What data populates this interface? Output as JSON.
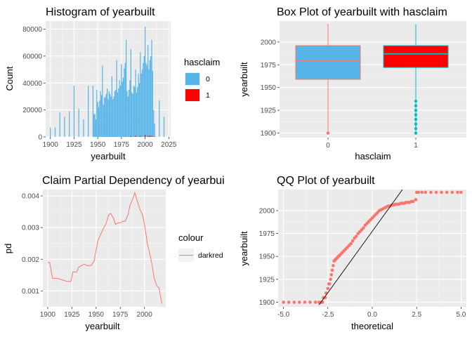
{
  "chart_data": [
    {
      "id": "hist",
      "type": "bar",
      "title": "Histogram of yearbuilt",
      "xlabel": "yearbuilt",
      "ylabel": "Count",
      "xlim": [
        1895,
        2027
      ],
      "ylim": [
        0,
        86000
      ],
      "xticks": [
        1900,
        1925,
        1950,
        1975,
        2000,
        2025
      ],
      "yticks": [
        0,
        20000,
        40000,
        60000,
        80000
      ],
      "legend_title": "hasclaim",
      "legend_position": "right",
      "series": [
        {
          "name": "0",
          "color": "#56B4E9",
          "x": [
            1900,
            1905,
            1910,
            1915,
            1920,
            1925,
            1930,
            1935,
            1940,
            1945,
            1946,
            1947,
            1948,
            1949,
            1950,
            1951,
            1952,
            1953,
            1954,
            1955,
            1956,
            1957,
            1958,
            1959,
            1960,
            1961,
            1962,
            1963,
            1964,
            1965,
            1966,
            1967,
            1968,
            1969,
            1970,
            1971,
            1972,
            1973,
            1974,
            1975,
            1976,
            1977,
            1978,
            1979,
            1980,
            1981,
            1982,
            1983,
            1984,
            1985,
            1986,
            1987,
            1988,
            1989,
            1990,
            1991,
            1992,
            1993,
            1994,
            1995,
            1996,
            1997,
            1998,
            1999,
            2000,
            2001,
            2002,
            2003,
            2004,
            2005,
            2006,
            2007,
            2008,
            2009,
            2010,
            2015,
            2020
          ],
          "values": [
            7000,
            7000,
            18000,
            15000,
            19000,
            38000,
            21000,
            13000,
            38000,
            38000,
            17000,
            17000,
            13000,
            35000,
            26000,
            22000,
            27000,
            34000,
            31000,
            53000,
            24000,
            29000,
            30000,
            32000,
            36000,
            28000,
            34000,
            32000,
            30000,
            45000,
            28000,
            30000,
            34000,
            35000,
            57000,
            33000,
            36000,
            42000,
            38000,
            54000,
            41000,
            44000,
            51000,
            55000,
            72000,
            34000,
            30000,
            35000,
            42000,
            65000,
            33000,
            32000,
            38000,
            37000,
            50000,
            33000,
            37000,
            47000,
            40000,
            63000,
            47000,
            50000,
            55000,
            60000,
            82000,
            55000,
            53000,
            68000,
            50000,
            57000,
            60000,
            72000,
            49000,
            20000,
            10000,
            27000,
            15000
          ]
        },
        {
          "name": "1",
          "color": "#FF0000",
          "x": [
            1985,
            1990,
            1995,
            2000,
            2003,
            2005,
            2007,
            2010
          ],
          "values": [
            600,
            900,
            700,
            1500,
            800,
            1000,
            900,
            400
          ]
        }
      ]
    },
    {
      "id": "box",
      "type": "box",
      "title": "Box Plot of yearbuilt with hasclaim",
      "xlabel": "hasclaim",
      "ylabel": "yearbuilt",
      "categories": [
        "0",
        "1"
      ],
      "ylim": [
        1895,
        2023
      ],
      "yticks": [
        1900,
        1925,
        1950,
        1975,
        2000
      ],
      "boxes": [
        {
          "category": "0",
          "fill": "#56B4E9",
          "line": "#F8766D",
          "whisker_low": 1900,
          "q1": 1959,
          "median": 1979,
          "q3": 1996,
          "whisker_high": 2020,
          "outliers": [
            1900
          ]
        },
        {
          "category": "1",
          "fill": "#FF0000",
          "line": "#00BFC4",
          "whisker_low": 1900,
          "q1": 1972,
          "median": 1987,
          "q3": 1996,
          "whisker_high": 2020,
          "outliers": [
            1900,
            1905,
            1910,
            1915,
            1920,
            1925,
            1930,
            1935
          ]
        }
      ]
    },
    {
      "id": "pd",
      "type": "line",
      "title": "Claim Partial Dependency of yearbui",
      "xlabel": "yearbuilt",
      "ylabel": "pd",
      "xlim": [
        1895,
        2022
      ],
      "ylim": [
        0.0005,
        0.0042
      ],
      "xticks": [
        1900,
        1925,
        1950,
        1975,
        2000
      ],
      "yticks": [
        0.001,
        0.002,
        0.003,
        0.004
      ],
      "ytick_labels": [
        "0.001",
        "0.002",
        "0.003",
        "0.004"
      ],
      "legend_title": "colour",
      "legend_position": "right",
      "series": [
        {
          "name": "darkred",
          "color": "#F8766D",
          "x": [
            1900,
            1902,
            1905,
            1910,
            1915,
            1920,
            1924,
            1926,
            1930,
            1932,
            1935,
            1938,
            1940,
            1945,
            1948,
            1952,
            1955,
            1958,
            1960,
            1963,
            1965,
            1968,
            1970,
            1973,
            1975,
            1978,
            1980,
            1983,
            1985,
            1988,
            1990,
            1993,
            1995,
            1998,
            2000,
            2003,
            2006,
            2008,
            2010,
            2013,
            2015,
            2018
          ],
          "values": [
            0.0019,
            0.0019,
            0.0014,
            0.0014,
            0.00135,
            0.0013,
            0.0013,
            0.0016,
            0.0016,
            0.00175,
            0.0018,
            0.00185,
            0.0018,
            0.0018,
            0.00195,
            0.0026,
            0.0028,
            0.003,
            0.0031,
            0.0034,
            0.00345,
            0.0033,
            0.0031,
            0.00315,
            0.00315,
            0.0032,
            0.0032,
            0.0034,
            0.0037,
            0.0039,
            0.0041,
            0.0038,
            0.0036,
            0.0034,
            0.0031,
            0.0025,
            0.0021,
            0.0018,
            0.0014,
            0.00115,
            0.0011,
            0.0006
          ]
        }
      ]
    },
    {
      "id": "qq",
      "type": "scatter",
      "title": "QQ Plot of yearbuilt",
      "xlabel": "theoretical",
      "ylabel": "yearbuilt",
      "xlim": [
        -5.3,
        5.3
      ],
      "ylim": [
        1895,
        2023
      ],
      "xticks": [
        -5.0,
        -2.5,
        0.0,
        2.5,
        5.0
      ],
      "xtick_labels": [
        "-5.0",
        "-2.5",
        "0.0",
        "2.5",
        "5.0"
      ],
      "yticks": [
        1900,
        1925,
        1950,
        1975,
        2000
      ],
      "point_color": "#F8766D",
      "line_color": "#000000",
      "reference_line": {
        "x1": -3.0,
        "y1": 1897,
        "x2": 1.7,
        "y2": 2023
      },
      "x": [
        -5.0,
        -4.7,
        -4.4,
        -4.1,
        -3.8,
        -3.5,
        -3.2,
        -3.0,
        -2.9,
        -2.8,
        -2.75,
        -2.65,
        -2.6,
        -2.5,
        -2.45,
        -2.4,
        -2.35,
        -2.3,
        -2.25,
        -2.2,
        -2.15,
        -2.1,
        -2.05,
        -2.0,
        -1.95,
        -1.9,
        -1.85,
        -1.8,
        -1.7,
        -1.6,
        -1.5,
        -1.4,
        -1.3,
        -1.2,
        -1.1,
        -1.0,
        -0.9,
        -0.8,
        -0.7,
        -0.6,
        -0.5,
        -0.4,
        -0.3,
        -0.2,
        -0.1,
        0.0,
        0.1,
        0.2,
        0.3,
        0.4,
        0.5,
        0.6,
        0.7,
        0.8,
        0.9,
        1.0,
        1.1,
        1.2,
        1.3,
        1.4,
        1.5,
        1.6,
        1.7,
        1.8,
        1.9,
        2.0,
        2.1,
        2.2,
        2.3,
        2.45,
        2.5,
        2.6,
        2.8,
        3.0,
        3.3,
        3.6,
        3.9,
        4.2,
        4.5,
        4.8,
        5.0
      ],
      "y": [
        1900,
        1900,
        1900,
        1900,
        1900,
        1900,
        1900,
        1900,
        1900,
        1900,
        1905,
        1905,
        1910,
        1915,
        1920,
        1920,
        1925,
        1930,
        1935,
        1940,
        1945,
        1946,
        1947,
        1948,
        1949,
        1950,
        1951,
        1952,
        1954,
        1956,
        1958,
        1960,
        1962,
        1964,
        1967,
        1970,
        1972,
        1975,
        1977,
        1979,
        1981,
        1984,
        1986,
        1988,
        1990,
        1992,
        1994,
        1996,
        1998,
        2000,
        2001,
        2002,
        2003,
        2004,
        2005,
        2005,
        2006,
        2006,
        2007,
        2007,
        2007,
        2008,
        2008,
        2008,
        2009,
        2009,
        2009,
        2010,
        2010,
        2012,
        2020,
        2020,
        2020,
        2020,
        2020,
        2020,
        2020,
        2020,
        2020,
        2020,
        2020
      ]
    }
  ]
}
